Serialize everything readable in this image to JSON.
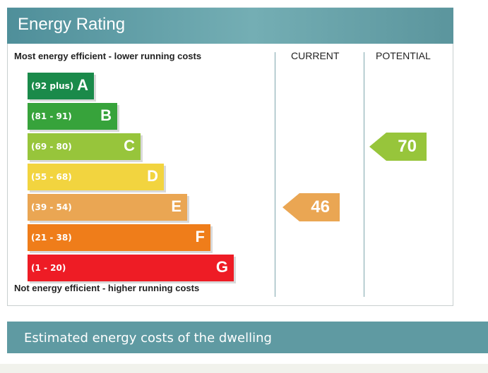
{
  "header": {
    "title": "Energy Rating"
  },
  "chart_data": {
    "type": "bar",
    "top_label": "Most energy efficient - lower running costs",
    "bottom_label": "Not energy efficient - higher running costs",
    "columns": [
      "CURRENT",
      "POTENTIAL"
    ],
    "bands": [
      {
        "range": "(92 plus)",
        "letter": "A",
        "min": 92,
        "max": 100,
        "color": "#1a8a4a"
      },
      {
        "range": "(81 - 91)",
        "letter": "B",
        "min": 81,
        "max": 91,
        "color": "#37a33b"
      },
      {
        "range": "(69 - 80)",
        "letter": "C",
        "min": 69,
        "max": 80,
        "color": "#97c53b"
      },
      {
        "range": "(55 - 68)",
        "letter": "D",
        "min": 55,
        "max": 68,
        "color": "#f2d43f"
      },
      {
        "range": "(39 - 54)",
        "letter": "E",
        "min": 39,
        "max": 54,
        "color": "#eaa653"
      },
      {
        "range": "(21 - 38)",
        "letter": "F",
        "min": 21,
        "max": 38,
        "color": "#ef7d1a"
      },
      {
        "range": "(1 - 20)",
        "letter": "G",
        "min": 1,
        "max": 20,
        "color": "#ee1c25"
      }
    ],
    "current": {
      "value": 46,
      "band": "E",
      "color": "#eaa653"
    },
    "potential": {
      "value": 70,
      "band": "C",
      "color": "#97c53b"
    }
  },
  "costs_section": {
    "title": "Estimated energy costs of the dwelling"
  }
}
